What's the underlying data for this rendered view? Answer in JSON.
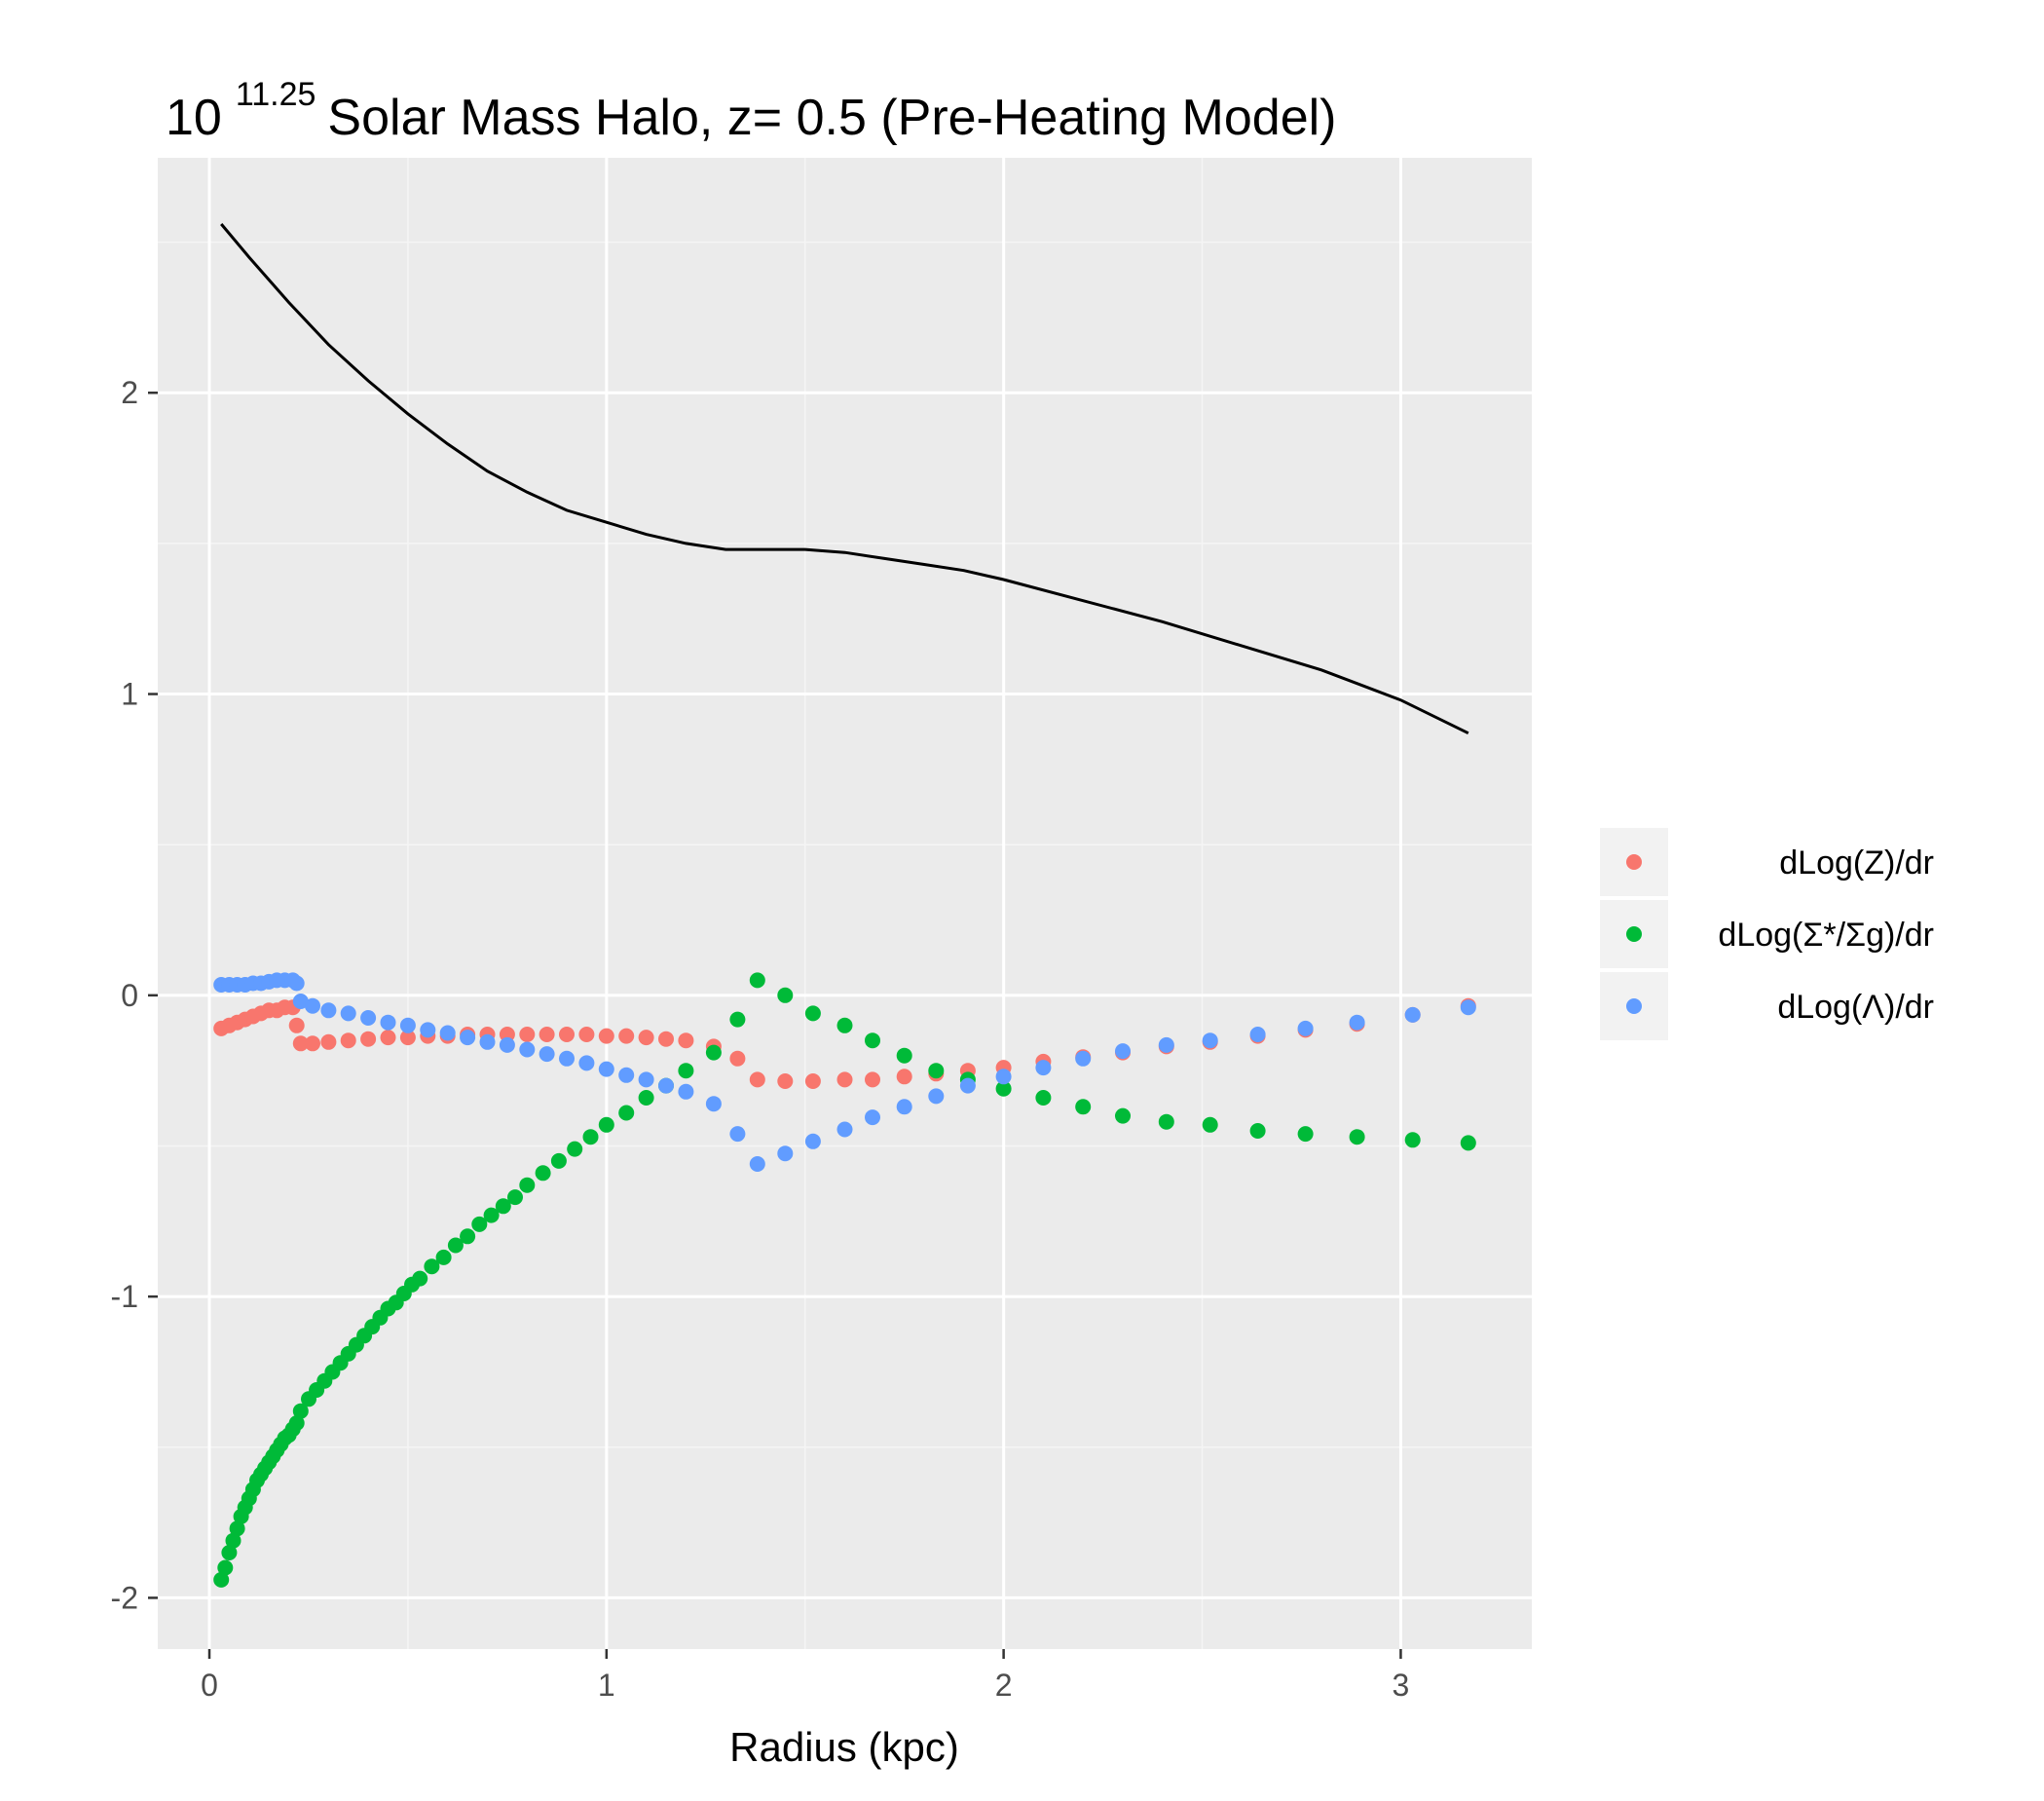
{
  "chart_data": {
    "type": "scatter",
    "title": {
      "base": "10",
      "exponent": "11.25",
      "rest": "Solar Mass Halo, z= 0.5 (Pre-Heating Model)"
    },
    "xlabel": "Radius (kpc)",
    "ylabel": "",
    "xlim": [
      -0.13,
      3.33
    ],
    "ylim": [
      -2.17,
      2.78
    ],
    "x_ticks": [
      "0",
      "1",
      "2",
      "3"
    ],
    "y_ticks": [
      "-2",
      "-1",
      "0",
      "1",
      "2"
    ],
    "grid": true,
    "legend_position": "right",
    "colors": {
      "panel_bg": "#ebebeb",
      "grid_major": "#ffffff",
      "grid_minor": "#f5f5f5",
      "line": "#000000",
      "red": "#f8766d",
      "green": "#00ba38",
      "blue": "#619cff"
    },
    "line": {
      "x": [
        0.03,
        0.1,
        0.2,
        0.3,
        0.4,
        0.5,
        0.6,
        0.7,
        0.8,
        0.9,
        1.0,
        1.1,
        1.2,
        1.3,
        1.4,
        1.5,
        1.6,
        1.7,
        1.8,
        1.9,
        2.0,
        2.2,
        2.4,
        2.6,
        2.8,
        3.0,
        3.17
      ],
      "y": [
        2.56,
        2.45,
        2.3,
        2.16,
        2.04,
        1.93,
        1.83,
        1.74,
        1.67,
        1.61,
        1.57,
        1.53,
        1.5,
        1.48,
        1.48,
        1.48,
        1.47,
        1.45,
        1.43,
        1.41,
        1.38,
        1.31,
        1.24,
        1.16,
        1.08,
        0.98,
        0.87
      ]
    },
    "series": [
      {
        "name": "dLog(Z)/dr",
        "color": "#f8766d",
        "x": [
          0.03,
          0.05,
          0.07,
          0.09,
          0.11,
          0.13,
          0.15,
          0.17,
          0.19,
          0.21,
          0.22,
          0.23,
          0.26,
          0.3,
          0.35,
          0.4,
          0.45,
          0.5,
          0.55,
          0.6,
          0.65,
          0.7,
          0.75,
          0.8,
          0.85,
          0.9,
          0.95,
          1.0,
          1.05,
          1.1,
          1.15,
          1.2,
          1.27,
          1.33,
          1.38,
          1.45,
          1.52,
          1.6,
          1.67,
          1.75,
          1.83,
          1.91,
          2.0,
          2.1,
          2.2,
          2.3,
          2.41,
          2.52,
          2.64,
          2.76,
          2.89,
          3.03,
          3.17
        ],
        "y": [
          -0.11,
          -0.1,
          -0.09,
          -0.08,
          -0.07,
          -0.06,
          -0.05,
          -0.05,
          -0.04,
          -0.04,
          -0.1,
          -0.16,
          -0.16,
          -0.155,
          -0.15,
          -0.145,
          -0.14,
          -0.14,
          -0.135,
          -0.135,
          -0.13,
          -0.13,
          -0.13,
          -0.13,
          -0.13,
          -0.13,
          -0.13,
          -0.135,
          -0.135,
          -0.14,
          -0.145,
          -0.15,
          -0.17,
          -0.21,
          -0.28,
          -0.285,
          -0.285,
          -0.28,
          -0.28,
          -0.27,
          -0.26,
          -0.25,
          -0.24,
          -0.22,
          -0.205,
          -0.19,
          -0.17,
          -0.155,
          -0.135,
          -0.115,
          -0.095,
          -0.065,
          -0.035
        ]
      },
      {
        "name": "dLog(Σ*/Σg)/dr",
        "color": "#00ba38",
        "x": [
          0.03,
          0.04,
          0.05,
          0.06,
          0.07,
          0.08,
          0.09,
          0.1,
          0.11,
          0.12,
          0.13,
          0.14,
          0.15,
          0.16,
          0.17,
          0.18,
          0.19,
          0.2,
          0.21,
          0.22,
          0.23,
          0.25,
          0.27,
          0.29,
          0.31,
          0.33,
          0.35,
          0.37,
          0.39,
          0.41,
          0.43,
          0.45,
          0.47,
          0.49,
          0.51,
          0.53,
          0.56,
          0.59,
          0.62,
          0.65,
          0.68,
          0.71,
          0.74,
          0.77,
          0.8,
          0.84,
          0.88,
          0.92,
          0.96,
          1.0,
          1.05,
          1.1,
          1.15,
          1.2,
          1.27,
          1.33,
          1.38,
          1.45,
          1.52,
          1.6,
          1.67,
          1.75,
          1.83,
          1.91,
          2.0,
          2.1,
          2.2,
          2.3,
          2.41,
          2.52,
          2.64,
          2.76,
          2.89,
          3.03,
          3.17
        ],
        "y": [
          -1.94,
          -1.9,
          -1.85,
          -1.81,
          -1.77,
          -1.73,
          -1.7,
          -1.67,
          -1.64,
          -1.61,
          -1.59,
          -1.57,
          -1.55,
          -1.53,
          -1.51,
          -1.49,
          -1.47,
          -1.46,
          -1.44,
          -1.42,
          -1.38,
          -1.34,
          -1.31,
          -1.28,
          -1.25,
          -1.22,
          -1.19,
          -1.16,
          -1.13,
          -1.1,
          -1.07,
          -1.04,
          -1.02,
          -0.99,
          -0.96,
          -0.94,
          -0.9,
          -0.87,
          -0.83,
          -0.8,
          -0.76,
          -0.73,
          -0.7,
          -0.67,
          -0.63,
          -0.59,
          -0.55,
          -0.51,
          -0.47,
          -0.43,
          -0.39,
          -0.34,
          -0.3,
          -0.25,
          -0.19,
          -0.08,
          0.05,
          0.0,
          -0.06,
          -0.1,
          -0.15,
          -0.2,
          -0.25,
          -0.28,
          -0.31,
          -0.34,
          -0.37,
          -0.4,
          -0.42,
          -0.43,
          -0.45,
          -0.46,
          -0.47,
          -0.48,
          -0.49
        ]
      },
      {
        "name": "dLog(Λ)/dr",
        "color": "#619cff",
        "x": [
          0.03,
          0.05,
          0.07,
          0.09,
          0.11,
          0.13,
          0.15,
          0.17,
          0.19,
          0.21,
          0.22,
          0.23,
          0.26,
          0.3,
          0.35,
          0.4,
          0.45,
          0.5,
          0.55,
          0.6,
          0.65,
          0.7,
          0.75,
          0.8,
          0.85,
          0.9,
          0.95,
          1.0,
          1.05,
          1.1,
          1.15,
          1.2,
          1.27,
          1.33,
          1.38,
          1.45,
          1.52,
          1.6,
          1.67,
          1.75,
          1.83,
          1.91,
          2.0,
          2.1,
          2.2,
          2.3,
          2.41,
          2.52,
          2.64,
          2.76,
          2.89,
          3.03,
          3.17
        ],
        "y": [
          0.035,
          0.035,
          0.035,
          0.035,
          0.04,
          0.04,
          0.045,
          0.05,
          0.05,
          0.05,
          0.04,
          -0.02,
          -0.035,
          -0.05,
          -0.06,
          -0.075,
          -0.09,
          -0.1,
          -0.115,
          -0.125,
          -0.14,
          -0.155,
          -0.165,
          -0.18,
          -0.195,
          -0.21,
          -0.225,
          -0.245,
          -0.265,
          -0.28,
          -0.3,
          -0.32,
          -0.36,
          -0.46,
          -0.56,
          -0.525,
          -0.485,
          -0.445,
          -0.405,
          -0.37,
          -0.335,
          -0.3,
          -0.27,
          -0.24,
          -0.21,
          -0.185,
          -0.165,
          -0.15,
          -0.13,
          -0.11,
          -0.09,
          -0.065,
          -0.04
        ]
      }
    ],
    "legend": [
      {
        "label": "dLog(Z)/dr",
        "color": "#f8766d"
      },
      {
        "label": "dLog(Σ*/Σg)/dr",
        "color": "#00ba38"
      },
      {
        "label": "dLog(Λ)/dr",
        "color": "#619cff"
      }
    ]
  }
}
